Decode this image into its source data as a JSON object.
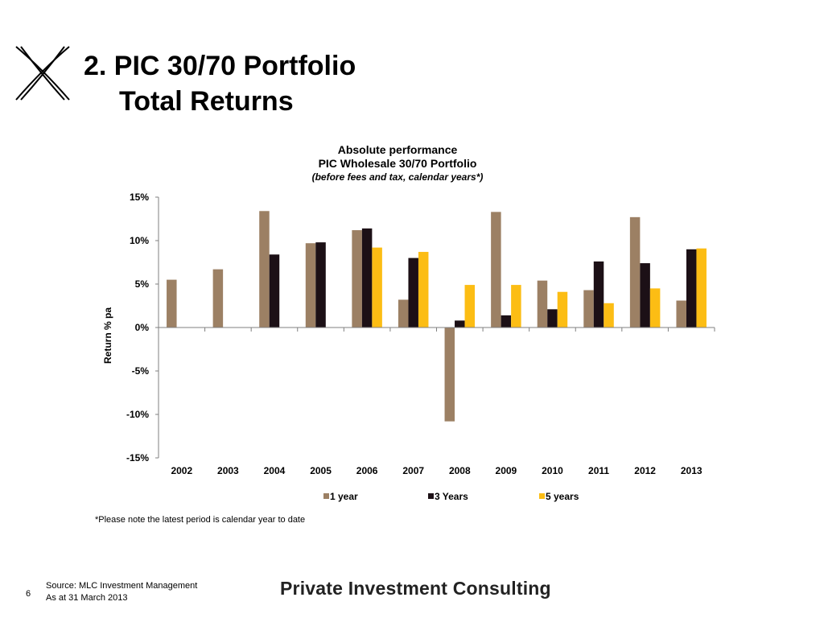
{
  "slide": {
    "title_line1": "2. PIC 30/70 Portfolio",
    "title_line2": "Total Returns",
    "footnote": "*Please note the latest period is calendar year to date",
    "page_number": "6",
    "source_line1": "Source: MLC Investment Management",
    "source_line2": "As at 31 March 2013",
    "brand": "Private Investment Consulting"
  },
  "chart_data": {
    "type": "bar",
    "title": "Absolute performance",
    "subtitle": "PIC Wholesale 30/70 Portfolio",
    "note": "(before fees and tax, calendar years*)",
    "ylabel": "Return % pa",
    "xlabel": "",
    "ylim": [
      -15,
      15
    ],
    "yticks": [
      15,
      10,
      5,
      0,
      -5,
      -10,
      -15
    ],
    "ytick_labels": [
      "15%",
      "10%",
      "5%",
      "0%",
      "-5%",
      "-10%",
      "-15%"
    ],
    "categories": [
      "2002",
      "2003",
      "2004",
      "2005",
      "2006",
      "2007",
      "2008",
      "2009",
      "2010",
      "2011",
      "2012",
      "2013"
    ],
    "legend_position": "bottom",
    "grid": false,
    "series": [
      {
        "name": "1 year",
        "color": "#9c8064",
        "values": [
          5.5,
          6.7,
          13.4,
          9.7,
          11.2,
          3.2,
          -10.8,
          13.3,
          5.4,
          4.3,
          12.7,
          3.1
        ]
      },
      {
        "name": "3 Years",
        "color": "#1c1016",
        "values": [
          null,
          null,
          8.4,
          9.8,
          11.4,
          8.0,
          0.8,
          1.4,
          2.1,
          7.6,
          7.4,
          9.0
        ]
      },
      {
        "name": "5 years",
        "color": "#fcbd14",
        "values": [
          null,
          null,
          null,
          null,
          9.2,
          8.7,
          4.9,
          4.9,
          4.1,
          2.8,
          4.5,
          9.1
        ]
      }
    ]
  }
}
